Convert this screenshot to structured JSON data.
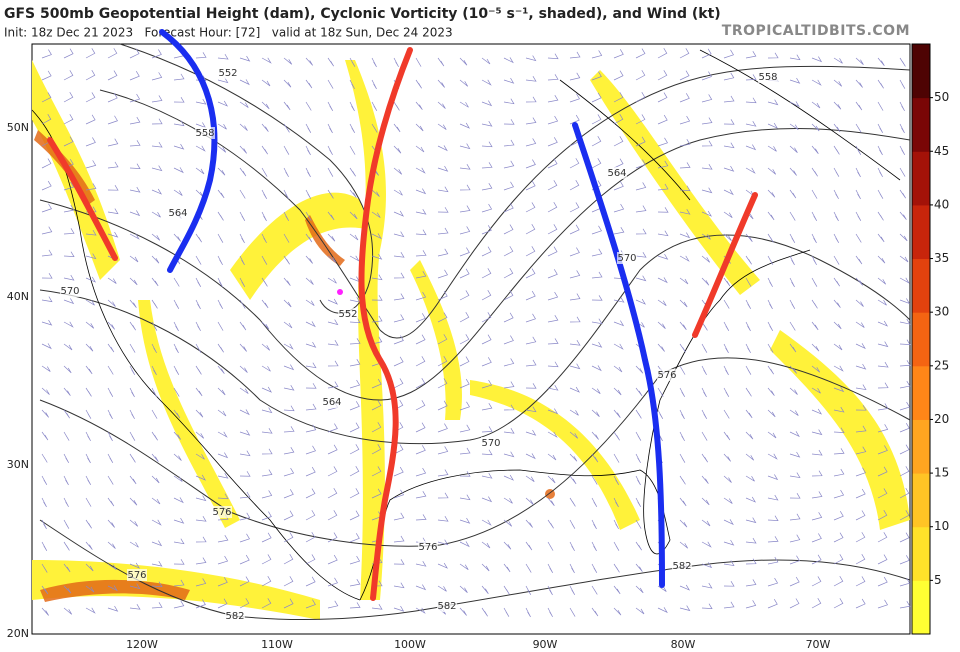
{
  "header": {
    "title": "GFS 500mb Geopotential Height (dam), Cyclonic Vorticity (10⁻⁵ s⁻¹, shaded), and Wind (kt)",
    "subtitle": "Init: 18z Dec 21 2023   Forecast Hour: [72]   valid at 18z Sun, Dec 24 2023",
    "site": "TROPICALTIDBITS.COM"
  },
  "map": {
    "lat_labels": [
      "50N",
      "40N",
      "30N",
      "20N"
    ],
    "lon_labels": [
      "120W",
      "110W",
      "100W",
      "90W",
      "80W",
      "70W"
    ],
    "contour_labels": [
      "552",
      "558",
      "564",
      "570",
      "552",
      "564",
      "570",
      "576",
      "576",
      "582",
      "582",
      "576",
      "582",
      "576",
      "570",
      "564",
      "558"
    ]
  },
  "colorbar": {
    "ticks": [
      "5",
      "10",
      "15",
      "20",
      "25",
      "30",
      "35",
      "40",
      "45",
      "50"
    ],
    "colors": [
      "#ffff33",
      "#ffe22a",
      "#ffc425",
      "#ffa520",
      "#ff8618",
      "#f46412",
      "#e3420e",
      "#c8250b",
      "#a31208",
      "#7a0606",
      "#4e0303"
    ]
  }
}
